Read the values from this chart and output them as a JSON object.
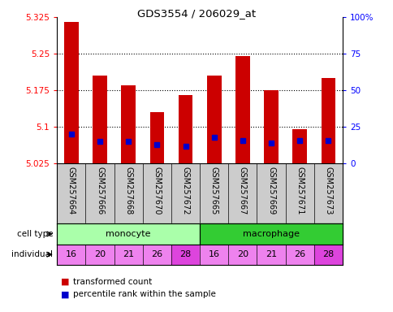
{
  "title": "GDS3554 / 206029_at",
  "samples": [
    "GSM257664",
    "GSM257666",
    "GSM257668",
    "GSM257670",
    "GSM257672",
    "GSM257665",
    "GSM257667",
    "GSM257669",
    "GSM257671",
    "GSM257673"
  ],
  "transformed_counts": [
    5.315,
    5.205,
    5.185,
    5.13,
    5.165,
    5.205,
    5.245,
    5.175,
    5.095,
    5.2
  ],
  "percentile_ranks": [
    20,
    15,
    15,
    13,
    12,
    18,
    16,
    14,
    16,
    16
  ],
  "y_min": 5.025,
  "y_max": 5.325,
  "y_ticks": [
    5.025,
    5.1,
    5.175,
    5.25,
    5.325
  ],
  "y_tick_labels": [
    "5.025",
    "5.1",
    "5.175",
    "5.25",
    "5.325"
  ],
  "y2_ticks": [
    0,
    25,
    50,
    75,
    100
  ],
  "y2_tick_labels": [
    "0",
    "25",
    "50",
    "75",
    "100%"
  ],
  "individuals": [
    "16",
    "20",
    "21",
    "26",
    "28",
    "16",
    "20",
    "21",
    "26",
    "28"
  ],
  "individual_colors": [
    "#EE82EE",
    "#EE82EE",
    "#EE82EE",
    "#EE82EE",
    "#DD44DD",
    "#EE82EE",
    "#EE82EE",
    "#EE82EE",
    "#EE82EE",
    "#DD44DD"
  ],
  "monocyte_color": "#AAFFAA",
  "macrophage_color": "#33CC33",
  "bar_color": "#CC0000",
  "percentile_color": "#0000CC",
  "sample_bg_color": "#CCCCCC",
  "legend_red": "transformed count",
  "legend_blue": "percentile rank within the sample"
}
